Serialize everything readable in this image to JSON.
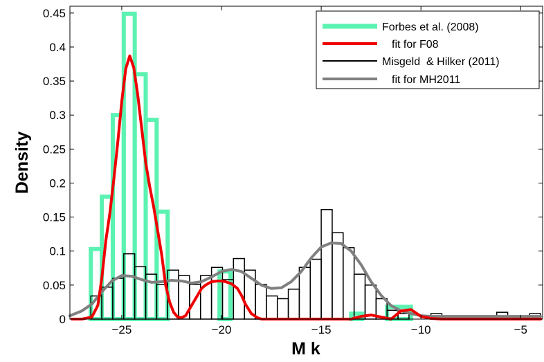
{
  "chart_data": {
    "type": "bar",
    "title": "",
    "xlabel": "M k",
    "ylabel": "Density",
    "xlim": [
      -27.6,
      -3.9
    ],
    "ylim": [
      0,
      0.46
    ],
    "grid": false,
    "legend_position": "top-right",
    "x_ticks": [
      -25,
      -20,
      -15,
      -10,
      -5
    ],
    "x_tick_labels": [
      "−25",
      "−20",
      "−15",
      "−10",
      "−5"
    ],
    "y_ticks": [
      0,
      0.05,
      0.1,
      0.15,
      0.2,
      0.25,
      0.3,
      0.35,
      0.4,
      0.45
    ],
    "y_tick_labels": [
      "0",
      "0.05",
      "0.1",
      "0.15",
      "0.2",
      "0.25",
      "0.3",
      "0.35",
      "0.4",
      "0.45"
    ],
    "series": [
      {
        "name": "Forbes et al. (2008)",
        "kind": "histogram",
        "color": "#5cf2b2",
        "bins": [
          {
            "x0": -26.55,
            "x1": -26.0,
            "value": 0.103
          },
          {
            "x0": -26.0,
            "x1": -25.45,
            "value": 0.18
          },
          {
            "x0": -25.45,
            "x1": -24.9,
            "value": 0.3
          },
          {
            "x0": -24.9,
            "x1": -24.35,
            "value": 0.449
          },
          {
            "x0": -24.35,
            "x1": -23.8,
            "value": 0.36
          },
          {
            "x0": -23.8,
            "x1": -23.25,
            "value": 0.293
          },
          {
            "x0": -23.25,
            "x1": -22.7,
            "value": 0.158
          },
          {
            "x0": -20.1,
            "x1": -19.55,
            "value": 0.07
          },
          {
            "x0": -13.5,
            "x1": -12.95,
            "value": 0.008
          },
          {
            "x0": -11.7,
            "x1": -10.5,
            "value": 0.018
          }
        ]
      },
      {
        "name": "fit for F08",
        "kind": "line",
        "color": "#ee0000",
        "x": [
          -27.5,
          -27.0,
          -26.5,
          -26.2,
          -26.0,
          -25.8,
          -25.6,
          -25.4,
          -25.2,
          -25.0,
          -24.8,
          -24.6,
          -24.4,
          -24.2,
          -24.0,
          -23.8,
          -23.6,
          -23.4,
          -23.2,
          -23.0,
          -22.8,
          -22.6,
          -22.4,
          -22.2,
          -22.0,
          -21.8,
          -21.5,
          -21.2,
          -21.0,
          -20.8,
          -20.5,
          -20.2,
          -20.0,
          -19.8,
          -19.5,
          -19.2,
          -19.0,
          -18.8,
          -18.5,
          -18.2,
          -18.0,
          -17.5,
          -17.0,
          -16.5,
          -16.0,
          -15.5,
          -15.0,
          -14.5,
          -14.0,
          -13.5,
          -13.0,
          -12.5,
          -12.0,
          -11.5,
          -11.0,
          -10.5,
          -10.0,
          -9.5,
          -9.0,
          -8.0,
          -7.0,
          -6.0,
          -5.0,
          -4.0
        ],
        "y": [
          0.0,
          0.0,
          0.003,
          0.02,
          0.06,
          0.115,
          0.155,
          0.205,
          0.26,
          0.32,
          0.368,
          0.387,
          0.37,
          0.33,
          0.28,
          0.23,
          0.195,
          0.165,
          0.13,
          0.095,
          0.05,
          0.025,
          0.01,
          0.003,
          0.002,
          0.005,
          0.02,
          0.035,
          0.045,
          0.05,
          0.055,
          0.056,
          0.056,
          0.055,
          0.052,
          0.045,
          0.035,
          0.022,
          0.008,
          0.002,
          0.0,
          0.0,
          0.0,
          0.0,
          0.0,
          0.0,
          0.0,
          0.0,
          0.0,
          0.0,
          0.004,
          0.006,
          0.003,
          0.0,
          0.012,
          0.014,
          0.004,
          0.001,
          0.0,
          0.0,
          0.0,
          0.0,
          0.0,
          0.0
        ]
      },
      {
        "name": "Misgeld  & Hilker (2011)",
        "kind": "histogram",
        "color": "#000000",
        "bins": [
          {
            "x0": -26.55,
            "x1": -26.0,
            "value": 0.034
          },
          {
            "x0": -26.0,
            "x1": -25.45,
            "value": 0.047
          },
          {
            "x0": -25.45,
            "x1": -24.9,
            "value": 0.06
          },
          {
            "x0": -24.9,
            "x1": -24.35,
            "value": 0.096
          },
          {
            "x0": -24.35,
            "x1": -23.8,
            "value": 0.077
          },
          {
            "x0": -23.8,
            "x1": -23.25,
            "value": 0.066
          },
          {
            "x0": -23.25,
            "x1": -22.7,
            "value": 0.051
          },
          {
            "x0": -22.7,
            "x1": -22.15,
            "value": 0.072
          },
          {
            "x0": -22.15,
            "x1": -21.6,
            "value": 0.064
          },
          {
            "x0": -21.6,
            "x1": -21.05,
            "value": 0.051
          },
          {
            "x0": -21.05,
            "x1": -20.5,
            "value": 0.064
          },
          {
            "x0": -20.5,
            "x1": -19.95,
            "value": 0.076
          },
          {
            "x0": -19.95,
            "x1": -19.4,
            "value": 0.058
          },
          {
            "x0": -19.4,
            "x1": -18.85,
            "value": 0.089
          },
          {
            "x0": -18.85,
            "x1": -18.3,
            "value": 0.072
          },
          {
            "x0": -18.3,
            "x1": -17.75,
            "value": 0.051
          },
          {
            "x0": -17.75,
            "x1": -17.2,
            "value": 0.034
          },
          {
            "x0": -17.2,
            "x1": -16.65,
            "value": 0.03
          },
          {
            "x0": -16.65,
            "x1": -16.1,
            "value": 0.044
          },
          {
            "x0": -16.1,
            "x1": -15.55,
            "value": 0.076
          },
          {
            "x0": -15.55,
            "x1": -15.0,
            "value": 0.088
          },
          {
            "x0": -15.0,
            "x1": -14.45,
            "value": 0.161
          },
          {
            "x0": -14.45,
            "x1": -13.9,
            "value": 0.127
          },
          {
            "x0": -13.9,
            "x1": -13.35,
            "value": 0.105
          },
          {
            "x0": -13.35,
            "x1": -12.8,
            "value": 0.066
          },
          {
            "x0": -12.8,
            "x1": -12.25,
            "value": 0.05
          },
          {
            "x0": -12.25,
            "x1": -11.7,
            "value": 0.03
          },
          {
            "x0": -11.7,
            "x1": -11.15,
            "value": 0.013
          },
          {
            "x0": -11.15,
            "x1": -10.6,
            "value": 0.008
          },
          {
            "x0": -9.5,
            "x1": -8.95,
            "value": 0.008
          },
          {
            "x0": -6.2,
            "x1": -5.65,
            "value": 0.01
          },
          {
            "x0": -4.55,
            "x1": -4.0,
            "value": 0.008
          }
        ]
      },
      {
        "name": "fit for MH2011",
        "kind": "line",
        "color": "#808080",
        "x": [
          -27.6,
          -27.0,
          -26.5,
          -26.0,
          -25.5,
          -25.0,
          -24.5,
          -24.0,
          -23.5,
          -23.0,
          -22.5,
          -22.0,
          -21.5,
          -21.0,
          -20.5,
          -20.0,
          -19.5,
          -19.0,
          -18.5,
          -18.0,
          -17.5,
          -17.0,
          -16.5,
          -16.0,
          -15.5,
          -15.0,
          -14.5,
          -14.0,
          -13.5,
          -13.0,
          -12.5,
          -12.0,
          -11.5,
          -11.0,
          -10.5,
          -10.0,
          -9.5,
          -9.0,
          -8.0,
          -7.0,
          -6.0,
          -5.0,
          -4.0
        ],
        "y": [
          0.005,
          0.012,
          0.022,
          0.04,
          0.056,
          0.064,
          0.063,
          0.058,
          0.054,
          0.055,
          0.057,
          0.056,
          0.053,
          0.055,
          0.062,
          0.07,
          0.073,
          0.07,
          0.06,
          0.05,
          0.045,
          0.046,
          0.055,
          0.07,
          0.09,
          0.106,
          0.112,
          0.111,
          0.1,
          0.08,
          0.055,
          0.035,
          0.02,
          0.012,
          0.008,
          0.005,
          0.004,
          0.004,
          0.004,
          0.004,
          0.004,
          0.004,
          0.004
        ]
      }
    ]
  }
}
